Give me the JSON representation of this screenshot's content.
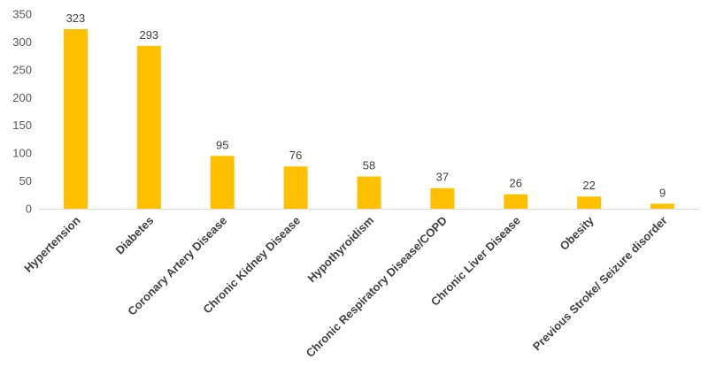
{
  "chart_data": {
    "type": "bar",
    "title": "",
    "xlabel": "",
    "ylabel": "",
    "categories": [
      "Hypertension",
      "Diabetes",
      "Coronary Artery Disease",
      "Chronic Kidney Disease",
      "Hypothyroidism",
      "Chronic Respiratory Disease/COPD",
      "Chronic Liver Disease",
      "Obesity",
      "Previous Stroke/ Seizure disorder"
    ],
    "values": [
      323,
      293,
      95,
      76,
      58,
      37,
      26,
      22,
      9
    ],
    "ylim": [
      0,
      350
    ],
    "yticks": [
      "0",
      "50",
      "100",
      "150",
      "200",
      "250",
      "300",
      "350"
    ],
    "grid": false,
    "legend": "none",
    "bar_color": "#FFC000",
    "axis_color": "#D9D9D9"
  }
}
